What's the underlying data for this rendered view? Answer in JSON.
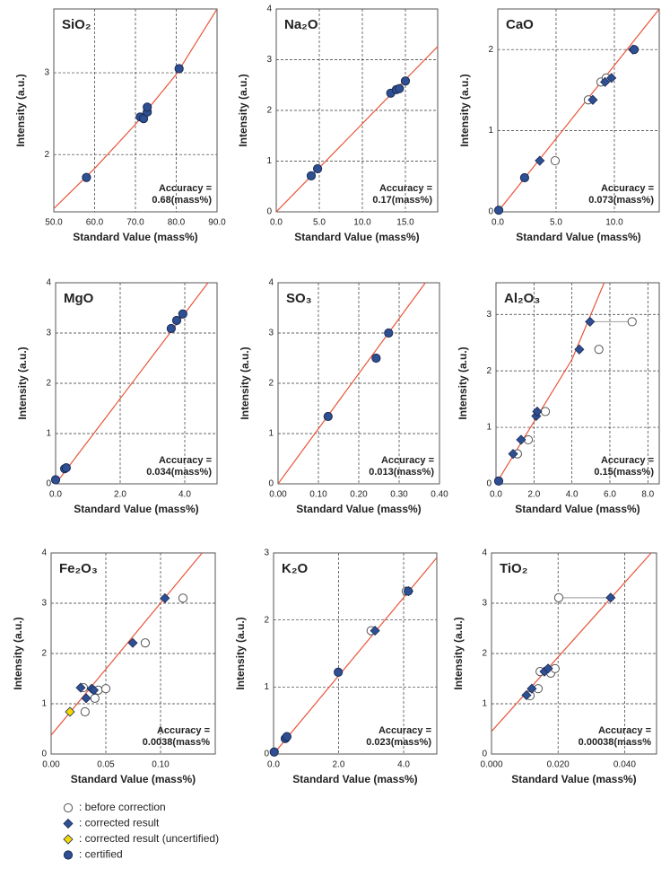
{
  "chart_data": [
    {
      "type": "scatter",
      "title": "SiO₂",
      "x_label": "Standard Value (mass%)",
      "y_label": "Intensity (a.u.)",
      "annotation": [
        "Accuracy =",
        "0.68(mass%)"
      ],
      "xlim": [
        50,
        90
      ],
      "ylim": [
        1.3,
        3.78
      ],
      "xticks": [
        {
          "value": 50,
          "label": "50.0"
        },
        {
          "value": 60,
          "label": "60.0"
        },
        {
          "value": 70,
          "label": "70.0"
        },
        {
          "value": 80,
          "label": "80.0"
        },
        {
          "value": 90,
          "label": "90.0"
        }
      ],
      "yticks": [
        2,
        3
      ],
      "grid": true,
      "series": [
        {
          "marker": "line",
          "color": "#e8553a",
          "x": [
            50,
            60,
            70,
            80,
            90
          ],
          "values": [
            1.34,
            1.83,
            2.37,
            2.98,
            3.78
          ]
        },
        {
          "marker": "circle",
          "color": "#2f4f93",
          "x": [
            58,
            71.2,
            72,
            72.9,
            72.9,
            80.7
          ],
          "values": [
            1.72,
            2.46,
            2.44,
            2.52,
            2.58,
            3.05
          ]
        }
      ]
    },
    {
      "type": "scatter",
      "title": "Na₂O",
      "x_label": "Standard Value (mass%)",
      "y_label": "Intensity (a.u.)",
      "annotation": [
        "Accuracy =",
        "0.17(mass%)"
      ],
      "xlim": [
        0,
        18.75
      ],
      "ylim": [
        0,
        4
      ],
      "xticks": [
        {
          "value": 0,
          "label": "0.0"
        },
        {
          "value": 5,
          "label": "5.0"
        },
        {
          "value": 10,
          "label": "10.0"
        },
        {
          "value": 15,
          "label": "15.0"
        }
      ],
      "yticks": [
        0,
        1,
        2,
        3,
        4
      ],
      "grid": true,
      "series": [
        {
          "marker": "line",
          "color": "#e8553a",
          "x": [
            0,
            18.75
          ],
          "values": [
            0,
            3.26
          ]
        },
        {
          "marker": "circle",
          "color": "#2f4f93",
          "x": [
            4.06,
            4.8,
            13.3,
            13.95,
            14.3,
            15
          ],
          "values": [
            0.71,
            0.85,
            2.34,
            2.41,
            2.43,
            2.58
          ]
        }
      ]
    },
    {
      "type": "scatter",
      "title": "CaO",
      "x_label": "Standard Value (mass%)",
      "y_label": "Intensity (a.u.)",
      "annotation": [
        "Accuracy =",
        "0.073(mass%)"
      ],
      "xlim": [
        0,
        13.85
      ],
      "ylim": [
        0,
        2.5
      ],
      "xticks": [
        {
          "value": 0,
          "label": "0.0"
        },
        {
          "value": 5,
          "label": "5.0"
        },
        {
          "value": 10,
          "label": "10.0"
        }
      ],
      "yticks": [
        0,
        1,
        2
      ],
      "grid": true,
      "series": [
        {
          "marker": "line",
          "color": "#e8553a",
          "x": [
            0,
            13.85
          ],
          "values": [
            0,
            2.5
          ]
        },
        {
          "marker": "circle-open",
          "color": "#ffffff",
          "x": [
            4.92,
            7.77,
            8.85,
            9.3
          ],
          "values": [
            0.63,
            1.38,
            1.6,
            1.65
          ]
        },
        {
          "marker": "diamond",
          "color": "#2f4f93",
          "x": [
            3.6,
            8.15,
            9.2,
            9.75,
            11.6
          ],
          "values": [
            0.63,
            1.38,
            1.6,
            1.65,
            2.0
          ]
        },
        {
          "marker": "circle",
          "color": "#2f4f93",
          "x": [
            0.08,
            2.3,
            11.7
          ],
          "values": [
            0.02,
            0.42,
            2.0
          ]
        }
      ]
    },
    {
      "type": "scatter",
      "title": "MgO",
      "x_label": "Standard Value (mass%)",
      "y_label": "Intensity (a.u.)",
      "annotation": [
        "Accuracy =",
        "0.034(mass%)"
      ],
      "xlim": [
        0,
        5
      ],
      "ylim": [
        0,
        4
      ],
      "xticks": [
        {
          "value": 0,
          "label": "0.0"
        },
        {
          "value": 2,
          "label": "2.0"
        },
        {
          "value": 4,
          "label": "4.0"
        }
      ],
      "yticks": [
        0,
        1,
        2,
        3,
        4
      ],
      "grid": true,
      "series": [
        {
          "marker": "line",
          "color": "#e8553a",
          "x": [
            0,
            4.72
          ],
          "values": [
            0,
            4
          ]
        },
        {
          "marker": "circle",
          "color": "#2f4f93",
          "x": [
            0,
            0.28,
            0.33,
            3.58,
            3.75,
            3.94
          ],
          "values": [
            0.08,
            0.3,
            0.32,
            3.09,
            3.25,
            3.38
          ]
        }
      ]
    },
    {
      "type": "scatter",
      "title": "SO₃",
      "x_label": "Standard Value (mass%)",
      "y_label": "Intensity (a.u.)",
      "annotation": [
        "Accuracy =",
        "0.013(mass%)"
      ],
      "xlim": [
        0,
        0.4
      ],
      "ylim": [
        0,
        4
      ],
      "xticks": [
        {
          "value": 0,
          "label": "0.00"
        },
        {
          "value": 0.1,
          "label": "0.10"
        },
        {
          "value": 0.2,
          "label": "0.20"
        },
        {
          "value": 0.3,
          "label": "0.30"
        },
        {
          "value": 0.4,
          "label": "0.40"
        }
      ],
      "yticks": [
        0,
        1,
        2,
        3,
        4
      ],
      "grid": true,
      "series": [
        {
          "marker": "line",
          "color": "#e8553a",
          "x": [
            0,
            0.365
          ],
          "values": [
            0,
            4
          ]
        },
        {
          "marker": "circle",
          "color": "#2f4f93",
          "x": [
            0.124,
            0.243,
            0.274
          ],
          "values": [
            1.34,
            2.5,
            3.0
          ]
        }
      ]
    },
    {
      "type": "scatter",
      "title": "Al₂O₃",
      "x_label": "Standard Value (mass%)",
      "y_label": "Intensity (a.u.)",
      "annotation": [
        "Accuracy =",
        "0.15(mass%)"
      ],
      "xlim": [
        0,
        8.6
      ],
      "ylim": [
        0,
        3.56
      ],
      "xticks": [
        {
          "value": 0,
          "label": "0.0"
        },
        {
          "value": 2,
          "label": "2.0"
        },
        {
          "value": 4,
          "label": "4.0"
        },
        {
          "value": 6,
          "label": "6.0"
        },
        {
          "value": 8,
          "label": "8.0"
        }
      ],
      "yticks": [
        0,
        1,
        2,
        3
      ],
      "grid": true,
      "series": [
        {
          "marker": "line",
          "color": "#e8553a",
          "x": [
            0,
            2,
            4,
            5.7
          ],
          "values": [
            0,
            1.1,
            2.2,
            3.56
          ]
        },
        {
          "marker": "line",
          "color": "#aaaaaa",
          "x": [
            4.95,
            7.17
          ],
          "values": [
            2.87,
            2.87
          ]
        },
        {
          "marker": "circle-open",
          "color": "#ffffff",
          "x": [
            1.13,
            1.7,
            2.6,
            5.42,
            7.17
          ],
          "values": [
            0.53,
            0.78,
            1.28,
            2.38,
            2.87
          ]
        },
        {
          "marker": "diamond",
          "color": "#2f4f93",
          "x": [
            0.9,
            1.32,
            2.12,
            2.17,
            4.39,
            4.95
          ],
          "values": [
            0.53,
            0.78,
            1.2,
            1.28,
            2.38,
            2.87
          ]
        },
        {
          "marker": "circle",
          "color": "#2f4f93",
          "x": [
            0.14
          ],
          "values": [
            0.05
          ]
        }
      ]
    },
    {
      "type": "scatter",
      "title": "Fe₂O₃",
      "x_label": "Standard Value (mass%)",
      "y_label": "Intensity (a.u.)",
      "annotation": [
        "Accuracy =",
        "0.0038(mass%"
      ],
      "xlim": [
        0,
        0.15
      ],
      "ylim": [
        0,
        4
      ],
      "xticks": [
        {
          "value": 0,
          "label": "0.00"
        },
        {
          "value": 0.05,
          "label": "0.05"
        },
        {
          "value": 0.1,
          "label": "0.10"
        }
      ],
      "yticks": [
        0,
        1,
        2,
        3,
        4
      ],
      "grid": true,
      "series": [
        {
          "marker": "line",
          "color": "#e8553a",
          "x": [
            0,
            0.138
          ],
          "values": [
            0.375,
            4.0
          ]
        },
        {
          "marker": "circle-open",
          "color": "#ffffff",
          "x": [
            0.0295,
            0.031,
            0.04,
            0.043,
            0.05,
            0.086,
            0.1205
          ],
          "values": [
            1.32,
            0.84,
            1.11,
            1.27,
            1.3,
            2.21,
            3.1
          ]
        },
        {
          "marker": "diamond",
          "color": "#2f4f93",
          "x": [
            0.027,
            0.032,
            0.037,
            0.039,
            0.0746,
            0.104
          ],
          "values": [
            1.32,
            1.11,
            1.3,
            1.27,
            2.21,
            3.1
          ]
        },
        {
          "marker": "diamond",
          "color": "#f5d800",
          "x": [
            0.0172
          ],
          "values": [
            0.84
          ]
        }
      ]
    },
    {
      "type": "scatter",
      "title": "K₂O",
      "x_label": "Standard Value (mass%)",
      "y_label": "Intensity (a.u.)",
      "annotation": [
        "Accuracy =",
        "0.023(mass%)"
      ],
      "xlim": [
        0,
        5.02
      ],
      "ylim": [
        0,
        3
      ],
      "xticks": [
        {
          "value": 0,
          "label": "0.0"
        },
        {
          "value": 2,
          "label": "2.0"
        },
        {
          "value": 4,
          "label": "4.0"
        }
      ],
      "yticks": [
        0,
        1,
        2,
        3
      ],
      "grid": true,
      "series": [
        {
          "marker": "line",
          "color": "#e8553a",
          "x": [
            0,
            5.02
          ],
          "values": [
            0,
            2.93
          ]
        },
        {
          "marker": "circle-open",
          "color": "#ffffff",
          "x": [
            3.0,
            4.08
          ],
          "values": [
            1.84,
            2.43
          ]
        },
        {
          "marker": "diamond",
          "color": "#2f4f93",
          "x": [
            3.12,
            4.15
          ],
          "values": [
            1.84,
            2.43
          ]
        },
        {
          "marker": "circle",
          "color": "#2f4f93",
          "x": [
            0.02,
            0.36,
            0.41,
            1.99,
            4.14
          ],
          "values": [
            0.03,
            0.23,
            0.26,
            1.22,
            2.43
          ]
        }
      ]
    },
    {
      "type": "scatter",
      "title": "TiO₂",
      "x_label": "Standard Value (mass%)",
      "y_label": "Intensity (a.u.)",
      "annotation": [
        "Accuracy =",
        "0.00038(mass%"
      ],
      "xlim": [
        0,
        0.0496
      ],
      "ylim": [
        0,
        4
      ],
      "xticks": [
        {
          "value": 0,
          "label": "0.000"
        },
        {
          "value": 0.02,
          "label": "0.020"
        },
        {
          "value": 0.04,
          "label": "0.040"
        }
      ],
      "yticks": [
        0,
        1,
        2,
        3,
        4
      ],
      "grid": true,
      "series": [
        {
          "marker": "line",
          "color": "#e8553a",
          "x": [
            0,
            0.048
          ],
          "values": [
            0.45,
            4.0
          ]
        },
        {
          "marker": "line",
          "color": "#aaaaaa",
          "x": [
            0.0202,
            0.0358
          ],
          "values": [
            3.11,
            3.11
          ]
        },
        {
          "marker": "circle-open",
          "color": "#ffffff",
          "x": [
            0.0116,
            0.014,
            0.0146,
            0.0178,
            0.0191,
            0.0202
          ],
          "values": [
            1.16,
            1.3,
            1.64,
            1.61,
            1.7,
            3.11
          ]
        },
        {
          "marker": "diamond",
          "color": "#2f4f93",
          "x": [
            0.0105,
            0.0121,
            0.0159,
            0.017,
            0.0358
          ],
          "values": [
            1.17,
            1.3,
            1.64,
            1.7,
            3.11
          ]
        }
      ]
    }
  ],
  "legend": [
    {
      "label": ": before correction",
      "marker": "circle-open",
      "color": "#ffffff"
    },
    {
      "label": ": corrected result",
      "marker": "diamond",
      "color": "#2f4f93"
    },
    {
      "label": ": corrected result (uncertified)",
      "marker": "diamond",
      "color": "#f5d800"
    },
    {
      "label": ": certified",
      "marker": "circle",
      "color": "#2f4f93"
    }
  ]
}
